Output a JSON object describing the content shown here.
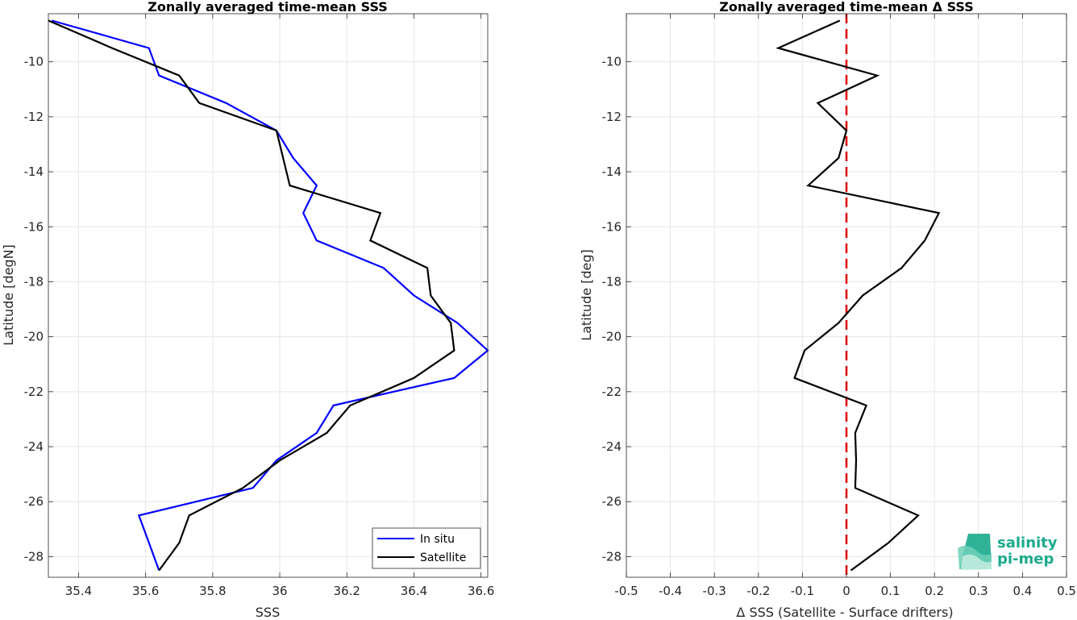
{
  "chart_data": [
    {
      "type": "line",
      "title": "Zonally averaged time-mean SSS",
      "xlabel": "SSS",
      "ylabel": "Latitude [degN]",
      "xlim": [
        35.31,
        36.62
      ],
      "ylim": [
        -28.75,
        -8.25
      ],
      "xticks": [
        35.4,
        35.6,
        35.8,
        36.0,
        36.2,
        36.4,
        36.6
      ],
      "xtick_labels": [
        "35.4",
        "35.6",
        "35.8",
        "36",
        "36.2",
        "36.4",
        "36.6"
      ],
      "yticks": [
        -10,
        -12,
        -14,
        -16,
        -18,
        -20,
        -22,
        -24,
        -26,
        -28
      ],
      "ytick_labels": [
        "-10",
        "-12",
        "-14",
        "-16",
        "-18",
        "-20",
        "-22",
        "-24",
        "-26",
        "-28"
      ],
      "grid": true,
      "legend_position": "bottom-right",
      "series": [
        {
          "name": "In situ",
          "color": "#0000ff",
          "x": [
            35.32,
            35.61,
            35.64,
            35.84,
            35.99,
            36.04,
            36.11,
            36.07,
            36.11,
            36.31,
            36.4,
            36.53,
            36.62,
            36.52,
            36.16,
            36.11,
            35.99,
            35.92,
            35.58,
            35.61,
            35.64
          ],
          "y": [
            -8.5,
            -9.5,
            -10.5,
            -11.5,
            -12.5,
            -13.5,
            -14.5,
            -15.5,
            -16.5,
            -17.5,
            -18.5,
            -19.5,
            -20.5,
            -21.5,
            -22.5,
            -23.5,
            -24.5,
            -25.5,
            -26.5,
            -27.5,
            -28.5
          ]
        },
        {
          "name": "Satellite",
          "color": "#000000",
          "x": [
            35.31,
            35.5,
            35.7,
            35.76,
            35.99,
            36.01,
            36.03,
            36.3,
            36.27,
            36.44,
            36.45,
            36.51,
            36.52,
            36.4,
            36.21,
            36.14,
            36.0,
            35.89,
            35.73,
            35.7,
            35.64
          ],
          "y": [
            -8.5,
            -9.5,
            -10.5,
            -11.5,
            -12.5,
            -13.5,
            -14.5,
            -15.5,
            -16.5,
            -17.5,
            -18.5,
            -19.5,
            -20.5,
            -21.5,
            -22.5,
            -23.5,
            -24.5,
            -25.5,
            -26.5,
            -27.5,
            -28.5
          ]
        }
      ]
    },
    {
      "type": "line",
      "title": "Zonally averaged time-mean Δ SSS",
      "xlabel": "Δ SSS (Satellite - Surface drifters)",
      "ylabel": "Latitude [deg]",
      "xlim": [
        -0.5,
        0.5
      ],
      "ylim": [
        -28.75,
        -8.25
      ],
      "xticks": [
        -0.5,
        -0.4,
        -0.3,
        -0.2,
        -0.1,
        0,
        0.1,
        0.2,
        0.3,
        0.4,
        0.5
      ],
      "xtick_labels": [
        "-0.5",
        "-0.4",
        "-0.3",
        "-0.2",
        "-0.1",
        "0",
        "0.1",
        "0.2",
        "0.3",
        "0.4",
        "0.5"
      ],
      "yticks": [
        -10,
        -12,
        -14,
        -16,
        -18,
        -20,
        -22,
        -24,
        -26,
        -28
      ],
      "ytick_labels": [
        "-10",
        "-12",
        "-14",
        "-16",
        "-18",
        "-20",
        "-22",
        "-24",
        "-26",
        "-28"
      ],
      "grid": true,
      "reference_line": {
        "x": 0,
        "color": "#e00000",
        "style": "dashed"
      },
      "series": [
        {
          "color": "#000000",
          "x": [
            -0.015,
            -0.155,
            0.07,
            -0.065,
            0.0,
            -0.018,
            -0.087,
            0.21,
            0.178,
            0.125,
            0.037,
            -0.018,
            -0.095,
            -0.118,
            0.045,
            0.02,
            0.022,
            0.02,
            0.163,
            0.095,
            0.01
          ],
          "y": [
            -8.5,
            -9.5,
            -10.5,
            -11.5,
            -12.5,
            -13.5,
            -14.5,
            -15.5,
            -16.5,
            -17.5,
            -18.5,
            -19.5,
            -20.5,
            -21.5,
            -22.5,
            -23.5,
            -24.5,
            -25.5,
            -26.5,
            -27.5,
            -28.5
          ]
        }
      ]
    }
  ],
  "logo": {
    "line1": "salinity",
    "line2": "pi-mep",
    "color": "#1aaa8c"
  }
}
